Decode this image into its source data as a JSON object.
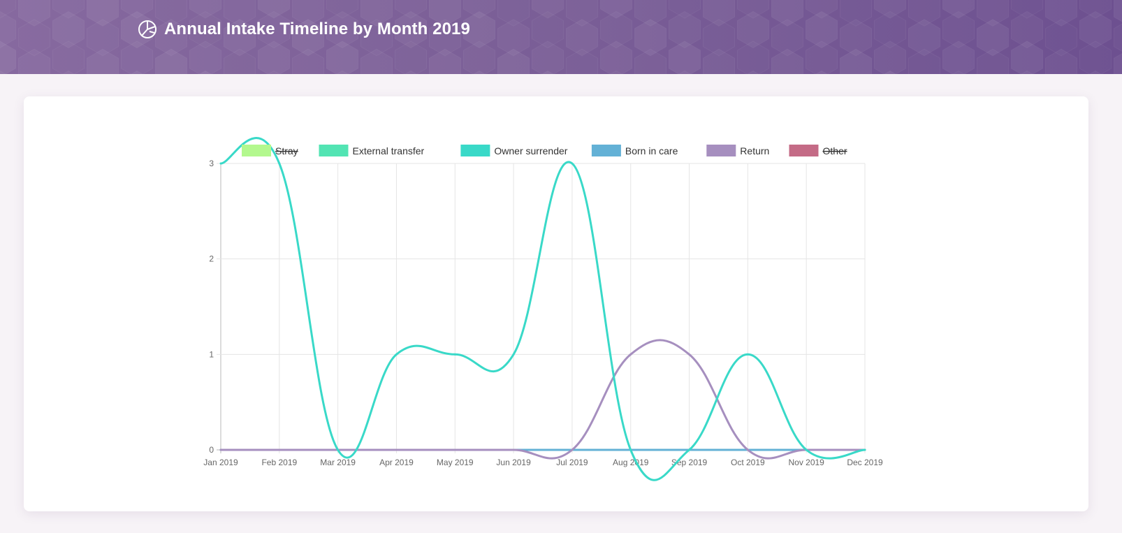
{
  "header": {
    "title": "Annual Intake Timeline by Month 2019",
    "icon": "pie-chart-icon",
    "background_color": "#7b5f97"
  },
  "chart_data": {
    "type": "line",
    "title": "",
    "xlabel": "",
    "ylabel": "",
    "x": [
      "Jan 2019",
      "Feb 2019",
      "Mar 2019",
      "Apr 2019",
      "May 2019",
      "Jun 2019",
      "Jul 2019",
      "Aug 2019",
      "Sep 2019",
      "Oct 2019",
      "Nov 2019",
      "Dec 2019"
    ],
    "ylim": [
      0,
      3
    ],
    "yticks": [
      0,
      1,
      2,
      3
    ],
    "grid": true,
    "legend_position": "top",
    "series": [
      {
        "name": "Stray",
        "color": "#b3f88e",
        "hidden": true,
        "values": [
          0,
          0,
          0,
          0,
          0,
          0,
          0,
          0,
          0,
          0,
          0,
          0
        ]
      },
      {
        "name": "External transfer",
        "color": "#52e4b3",
        "hidden": false,
        "values": [
          0,
          0,
          0,
          0,
          0,
          0,
          0,
          0,
          0,
          0,
          0,
          0
        ]
      },
      {
        "name": "Owner surrender",
        "color": "#39d9c8",
        "hidden": false,
        "values": [
          3,
          3,
          0,
          1,
          1,
          1,
          3,
          0,
          0,
          1,
          0,
          0
        ]
      },
      {
        "name": "Born in care",
        "color": "#63b1d6",
        "hidden": false,
        "values": [
          0,
          0,
          0,
          0,
          0,
          0,
          0,
          0,
          0,
          0,
          0,
          0
        ]
      },
      {
        "name": "Return",
        "color": "#a68fbf",
        "hidden": false,
        "values": [
          0,
          0,
          0,
          0,
          0,
          0,
          0,
          1,
          1,
          0,
          0,
          0
        ]
      },
      {
        "name": "Other",
        "color": "#c46b86",
        "hidden": true,
        "values": [
          0,
          0,
          0,
          0,
          0,
          0,
          0,
          0,
          0,
          0,
          0,
          0
        ]
      }
    ]
  }
}
